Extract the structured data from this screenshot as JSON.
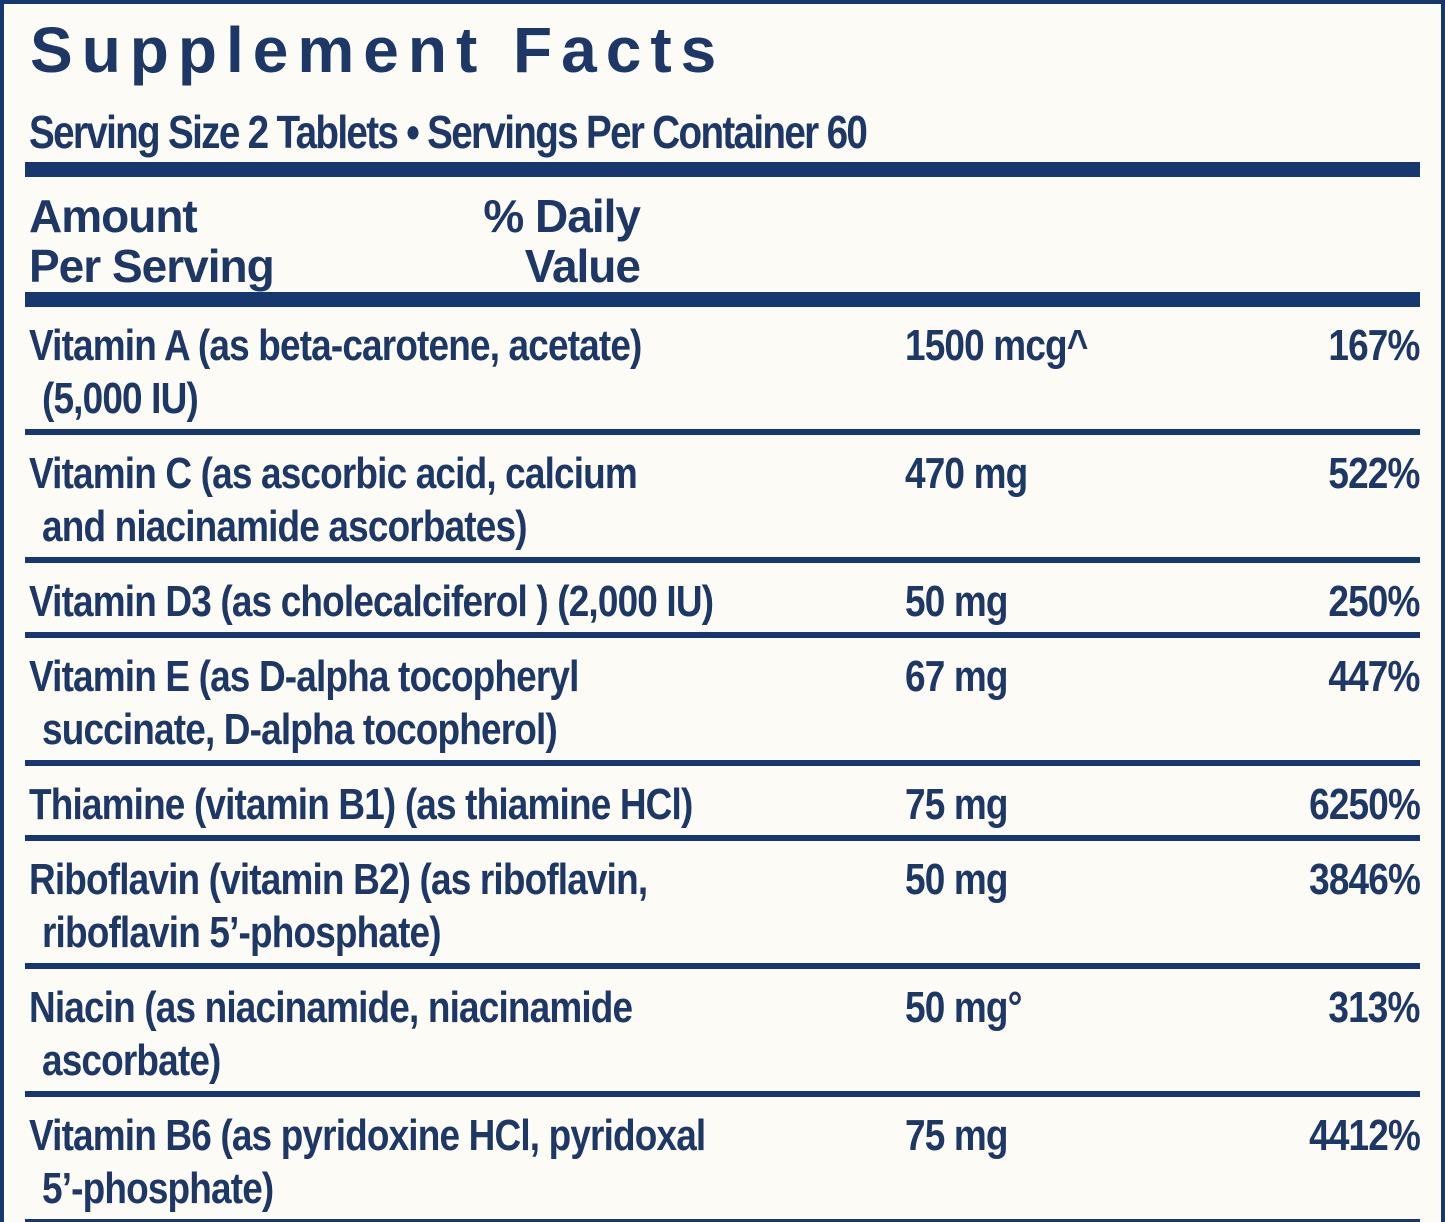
{
  "label": {
    "title": "Supplement Facts",
    "serving_line": "Serving Size 2 Tablets • Servings Per Container 60",
    "header": {
      "amount_line1": "Amount",
      "amount_line2": "Per Serving",
      "dv_line1": "% Daily",
      "dv_line2": "Value"
    },
    "rows": [
      {
        "name_line1": "Vitamin A (as beta-carotene, acetate)",
        "name_line2": "(5,000 IU)",
        "amount": "1500 mcg^",
        "dv": "167%"
      },
      {
        "name_line1": "Vitamin C (as ascorbic acid, calcium",
        "name_line2": "and niacinamide ascorbates)",
        "amount": "470 mg",
        "dv": "522%"
      },
      {
        "name_line1": "Vitamin D3 (as cholecalciferol ) (2,000 IU)",
        "name_line2": "",
        "amount": "50 mg",
        "dv": "250%"
      },
      {
        "name_line1": "Vitamin E (as D-alpha tocopheryl",
        "name_line2": "succinate, D-alpha tocopherol)",
        "amount": "67 mg",
        "dv": "447%"
      },
      {
        "name_line1": "Thiamine (vitamin B1) (as thiamine HCl)",
        "name_line2": "",
        "amount": "75 mg",
        "dv": "6250%"
      },
      {
        "name_line1": "Riboflavin (vitamin B2) (as riboflavin,",
        "name_line2": "riboflavin 5’-phosphate)",
        "amount": "50 mg",
        "dv": "3846%"
      },
      {
        "name_line1": "Niacin (as niacinamide, niacinamide",
        "name_line2": "ascorbate)",
        "amount": "50 mg°",
        "dv": "313%"
      },
      {
        "name_line1": "Vitamin B6 (as pyridoxine HCl, pyridoxal",
        "name_line2": "5’-phosphate)",
        "amount": "75 mg",
        "dv": "4412%"
      }
    ],
    "colors": {
      "navy": "#17386e",
      "text": "#1d3866",
      "background": "#fcfbf5"
    }
  }
}
